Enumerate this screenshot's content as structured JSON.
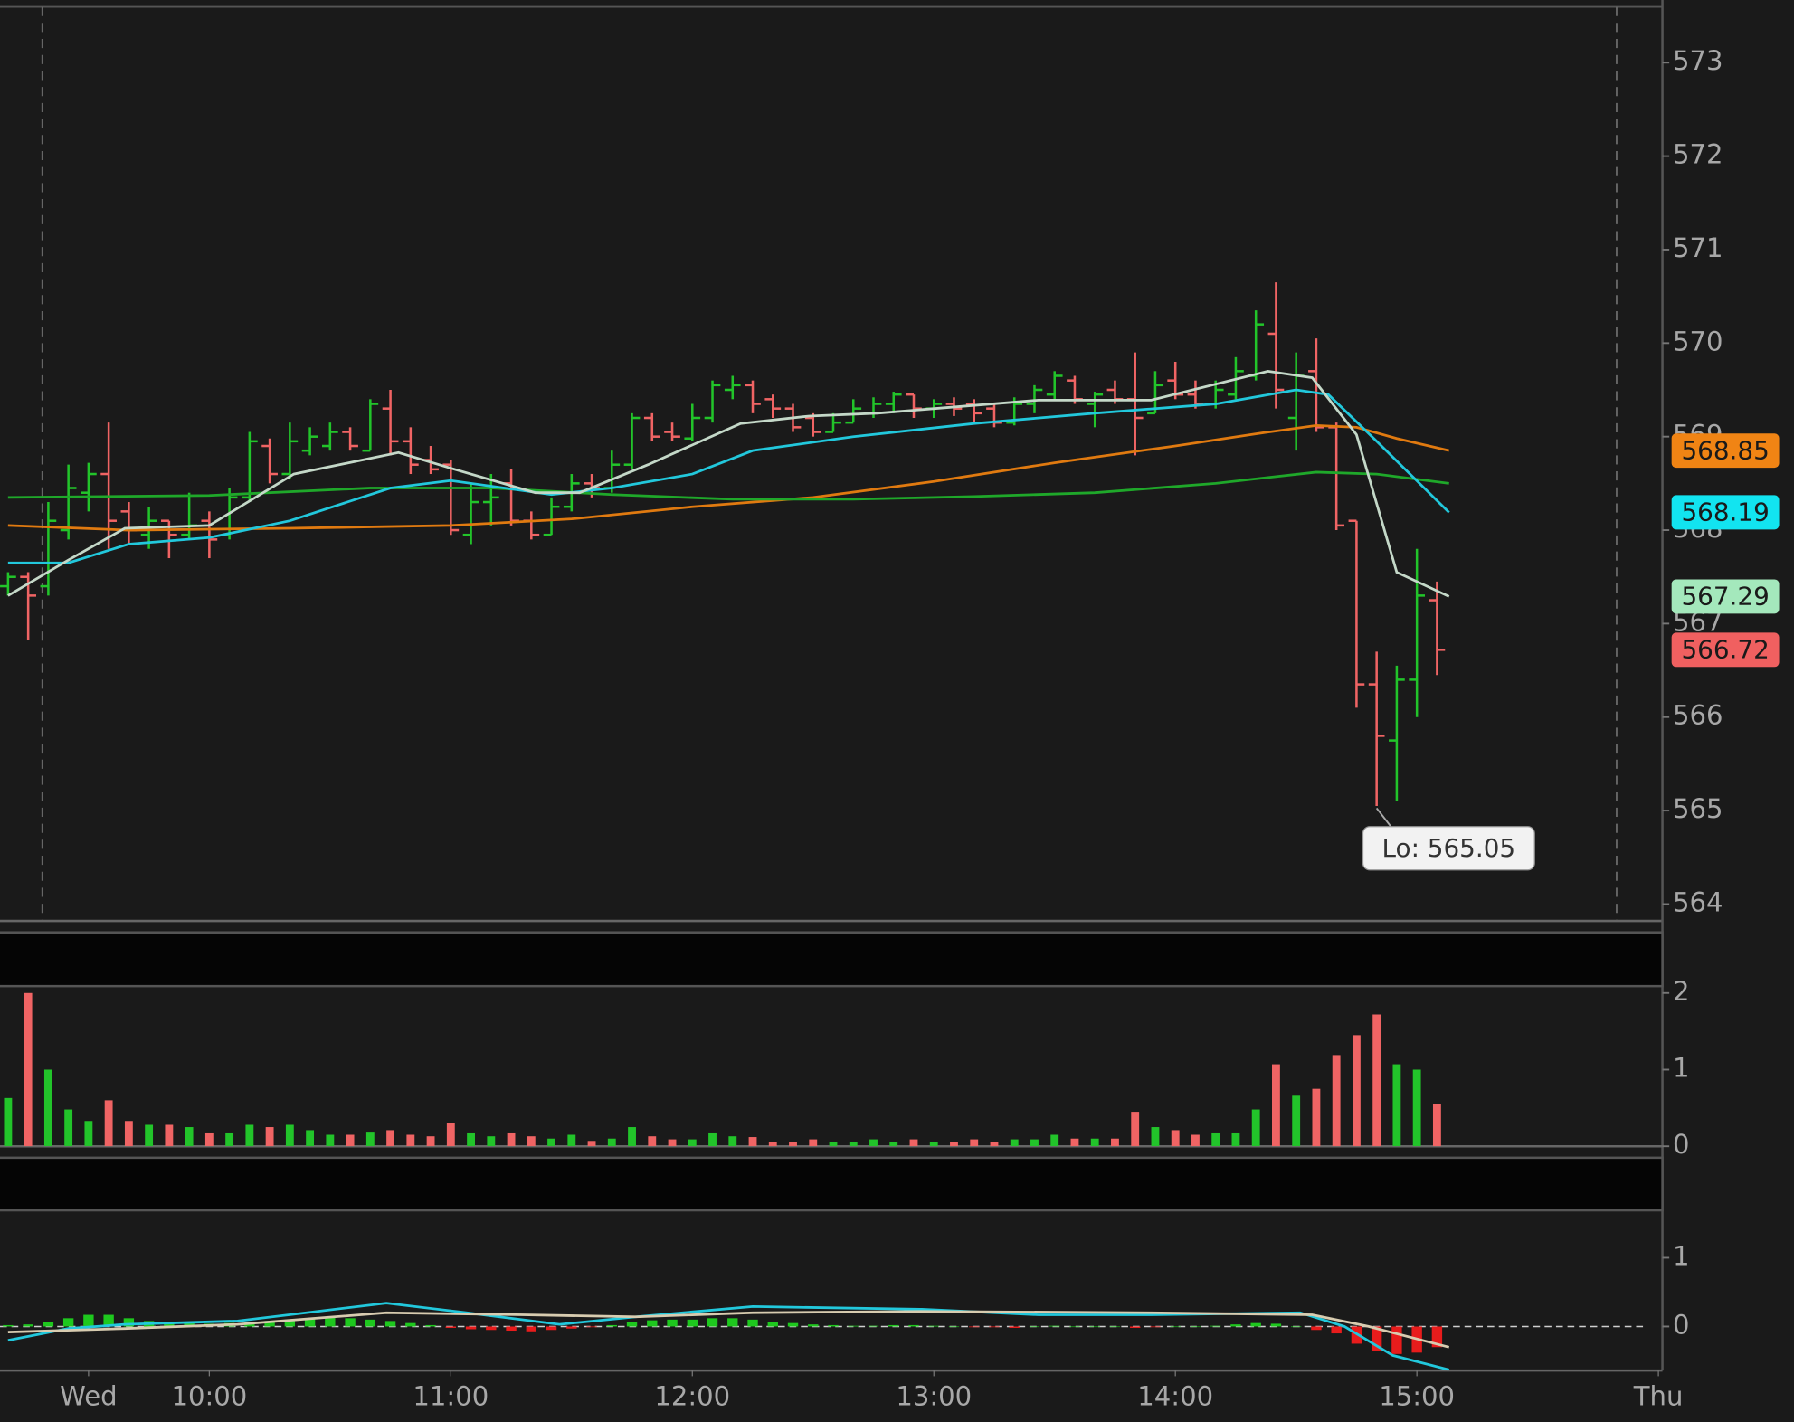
{
  "chart_data": [
    {
      "type": "ohlc",
      "x": [
        550,
        555,
        560,
        565,
        570,
        575,
        580,
        585,
        590,
        595,
        600,
        605,
        610,
        615,
        620,
        625,
        630,
        635,
        640,
        645,
        650,
        655,
        660,
        665,
        670,
        675,
        680,
        685,
        690,
        695,
        700,
        705,
        710,
        715,
        720,
        725,
        730,
        735,
        740,
        745,
        750,
        755,
        760,
        765,
        770,
        775,
        780,
        785,
        790,
        795,
        800,
        805,
        810,
        815,
        820,
        825,
        830,
        835,
        840,
        845,
        850,
        855,
        860,
        865,
        870,
        875,
        880,
        885,
        890,
        895,
        900,
        905
      ],
      "open": [
        567.4,
        567.5,
        567.4,
        568.0,
        568.4,
        568.6,
        568.2,
        567.95,
        568.1,
        567.95,
        568.1,
        567.95,
        568.35,
        568.9,
        568.6,
        568.85,
        568.9,
        569.05,
        568.85,
        569.3,
        568.95,
        568.75,
        568.7,
        567.95,
        568.3,
        568.5,
        568.1,
        567.95,
        568.25,
        568.5,
        568.45,
        568.7,
        569.2,
        569.05,
        568.98,
        569.2,
        569.5,
        569.55,
        569.4,
        569.3,
        569.2,
        569.05,
        569.15,
        569.25,
        569.35,
        569.45,
        569.3,
        569.35,
        569.35,
        569.3,
        569.15,
        569.35,
        569.45,
        569.6,
        569.35,
        569.5,
        569.4,
        569.25,
        569.6,
        569.45,
        569.35,
        569.45,
        569.65,
        570.1,
        569.2,
        569.7,
        569.1,
        568.1,
        566.35,
        565.75,
        566.4,
        567.25
      ],
      "high": [
        567.55,
        567.55,
        568.3,
        568.7,
        568.72,
        569.15,
        568.3,
        568.25,
        568.1,
        568.4,
        568.2,
        568.45,
        569.05,
        568.98,
        569.15,
        569.1,
        569.15,
        569.1,
        569.4,
        569.5,
        569.1,
        568.9,
        568.75,
        568.5,
        568.6,
        568.65,
        568.2,
        568.35,
        568.6,
        568.6,
        568.85,
        569.25,
        569.25,
        569.15,
        569.35,
        569.6,
        569.65,
        569.6,
        569.45,
        569.35,
        569.25,
        569.25,
        569.4,
        569.42,
        569.48,
        569.45,
        569.4,
        569.42,
        569.4,
        569.35,
        569.42,
        569.55,
        569.7,
        569.65,
        569.48,
        569.6,
        569.9,
        569.7,
        569.8,
        569.6,
        569.6,
        569.85,
        570.35,
        570.65,
        569.9,
        570.05,
        569.15,
        568.1,
        566.7,
        566.55,
        567.8,
        567.45
      ],
      "low": [
        567.3,
        566.82,
        567.3,
        567.9,
        568.2,
        567.8,
        567.85,
        567.8,
        567.7,
        567.9,
        567.7,
        567.9,
        568.3,
        568.5,
        568.55,
        568.8,
        568.85,
        568.85,
        568.85,
        568.8,
        568.6,
        568.6,
        567.95,
        567.85,
        568.05,
        568.05,
        567.9,
        567.95,
        568.2,
        568.35,
        568.4,
        568.65,
        568.95,
        568.95,
        568.95,
        569.15,
        569.4,
        569.25,
        569.2,
        569.05,
        569.0,
        569.05,
        569.15,
        569.2,
        569.25,
        569.2,
        569.2,
        569.22,
        569.15,
        569.1,
        569.12,
        569.25,
        569.4,
        569.35,
        569.1,
        569.35,
        568.8,
        569.25,
        569.4,
        569.3,
        569.3,
        569.4,
        569.6,
        569.3,
        568.85,
        569.05,
        568.0,
        566.1,
        565.05,
        565.1,
        566.0,
        566.45
      ],
      "close": [
        567.5,
        567.3,
        568.1,
        568.45,
        568.6,
        568.1,
        568.0,
        568.1,
        567.95,
        568.05,
        567.9,
        568.35,
        568.95,
        568.6,
        568.95,
        569.0,
        569.05,
        568.9,
        569.35,
        568.95,
        568.7,
        568.65,
        568.0,
        568.3,
        568.35,
        568.1,
        567.95,
        568.25,
        568.5,
        568.45,
        568.7,
        569.2,
        569.0,
        569.0,
        569.2,
        569.55,
        569.55,
        569.35,
        569.3,
        569.1,
        569.05,
        569.15,
        569.3,
        569.35,
        569.45,
        569.3,
        569.35,
        569.3,
        569.25,
        569.15,
        569.35,
        569.5,
        569.65,
        569.4,
        569.45,
        569.4,
        569.2,
        569.55,
        569.45,
        569.35,
        569.5,
        569.7,
        570.2,
        569.5,
        569.65,
        569.1,
        568.05,
        566.35,
        565.8,
        566.4,
        567.3,
        566.72
      ],
      "up_color": "#22c42a",
      "down_color": "#f06464",
      "lines": [
        {
          "color": "#e07a10",
          "x": [
            550,
            580,
            620,
            660,
            690,
            720,
            750,
            780,
            810,
            840,
            860,
            875,
            885,
            895,
            908
          ],
          "values": [
            568.05,
            568.0,
            568.02,
            568.05,
            568.12,
            568.25,
            568.35,
            568.52,
            568.72,
            568.9,
            569.03,
            569.12,
            569.1,
            568.98,
            568.85
          ]
        },
        {
          "color": "#1fa82a",
          "x": [
            550,
            600,
            640,
            670,
            700,
            730,
            760,
            790,
            820,
            850,
            875,
            890,
            908
          ],
          "values": [
            568.35,
            568.37,
            568.45,
            568.45,
            568.38,
            568.33,
            568.33,
            568.36,
            568.4,
            568.5,
            568.62,
            568.6,
            568.5
          ]
        },
        {
          "color": "#22c8dc",
          "x": [
            550,
            565,
            580,
            600,
            620,
            645,
            660,
            685,
            700,
            720,
            735,
            760,
            790,
            820,
            850,
            870,
            878,
            890,
            908
          ],
          "values": [
            567.65,
            567.65,
            567.85,
            567.92,
            568.1,
            568.45,
            568.53,
            568.38,
            568.45,
            568.6,
            568.85,
            569.0,
            569.14,
            569.25,
            569.35,
            569.5,
            569.45,
            568.95,
            568.19
          ]
        },
        {
          "color": "#c4d8c8",
          "x": [
            550,
            565,
            579,
            600,
            621,
            647,
            661,
            681,
            692,
            709,
            732,
            749,
            766,
            806,
            834,
            863,
            874,
            885,
            895,
            908
          ],
          "values": [
            567.3,
            567.68,
            568.02,
            568.05,
            568.6,
            568.83,
            568.65,
            568.4,
            568.4,
            568.7,
            569.14,
            569.22,
            569.25,
            569.39,
            569.39,
            569.7,
            569.63,
            569.02,
            567.55,
            567.29
          ]
        }
      ],
      "price_markers": [
        {
          "value": 568.85,
          "color": "#f08414"
        },
        {
          "value": 568.19,
          "color": "#12e4f0"
        },
        {
          "value": 567.29,
          "color": "#a4e8bc"
        },
        {
          "value": 566.72,
          "color": "#f06060"
        }
      ],
      "low_label": "Lo: 565.05",
      "xlim": [
        548,
        961
      ],
      "ylim": [
        563.82,
        573.67
      ],
      "yticks": [
        564,
        565,
        566,
        567,
        568,
        569,
        570,
        571,
        572,
        573
      ]
    },
    {
      "type": "volume",
      "x": [
        550,
        555,
        560,
        565,
        570,
        575,
        580,
        585,
        590,
        595,
        600,
        605,
        610,
        615,
        620,
        625,
        630,
        635,
        640,
        645,
        650,
        655,
        660,
        665,
        670,
        675,
        680,
        685,
        690,
        695,
        700,
        705,
        710,
        715,
        720,
        725,
        730,
        735,
        740,
        745,
        750,
        755,
        760,
        765,
        770,
        775,
        780,
        785,
        790,
        795,
        800,
        805,
        810,
        815,
        820,
        825,
        830,
        835,
        840,
        845,
        850,
        855,
        860,
        865,
        870,
        875,
        880,
        885,
        890,
        895,
        900,
        905
      ],
      "values": [
        0.63,
        2.0,
        1.0,
        0.48,
        0.33,
        0.6,
        0.33,
        0.28,
        0.28,
        0.25,
        0.18,
        0.18,
        0.28,
        0.25,
        0.28,
        0.21,
        0.15,
        0.15,
        0.19,
        0.21,
        0.15,
        0.13,
        0.3,
        0.18,
        0.13,
        0.18,
        0.13,
        0.1,
        0.15,
        0.07,
        0.1,
        0.25,
        0.13,
        0.09,
        0.09,
        0.18,
        0.13,
        0.12,
        0.06,
        0.06,
        0.09,
        0.06,
        0.06,
        0.09,
        0.06,
        0.09,
        0.06,
        0.06,
        0.09,
        0.06,
        0.09,
        0.09,
        0.15,
        0.1,
        0.1,
        0.1,
        0.45,
        0.25,
        0.21,
        0.15,
        0.18,
        0.18,
        0.48,
        1.07,
        0.66,
        0.75,
        1.19,
        1.45,
        1.72,
        1.07,
        1.0,
        0.55
      ],
      "up_color": "#22c42a",
      "down_color": "#f06464",
      "xlim": [
        548,
        961
      ],
      "ylim": [
        0,
        2.09
      ],
      "yticks": [
        0,
        1,
        2
      ]
    },
    {
      "type": "macd",
      "x": [
        550,
        555,
        560,
        565,
        570,
        575,
        580,
        585,
        590,
        595,
        600,
        605,
        610,
        615,
        620,
        625,
        630,
        635,
        640,
        645,
        650,
        655,
        660,
        665,
        670,
        675,
        680,
        685,
        690,
        695,
        700,
        705,
        710,
        715,
        720,
        725,
        730,
        735,
        740,
        745,
        750,
        755,
        760,
        765,
        770,
        775,
        780,
        785,
        790,
        795,
        800,
        805,
        810,
        815,
        820,
        825,
        830,
        835,
        840,
        845,
        850,
        855,
        860,
        865,
        870,
        875,
        880,
        885,
        890,
        895,
        900,
        905
      ],
      "histogram": [
        0.02,
        0.03,
        0.06,
        0.12,
        0.17,
        0.17,
        0.12,
        0.08,
        0.06,
        0.05,
        0.04,
        0.05,
        0.07,
        0.08,
        0.1,
        0.12,
        0.13,
        0.12,
        0.1,
        0.08,
        0.05,
        0.02,
        -0.02,
        -0.04,
        -0.05,
        -0.06,
        -0.07,
        -0.05,
        -0.03,
        -0.01,
        0.02,
        0.06,
        0.09,
        0.1,
        0.1,
        0.12,
        0.12,
        0.1,
        0.07,
        0.05,
        0.03,
        0.02,
        0.01,
        0.01,
        0.02,
        0.02,
        0.01,
        0.0,
        -0.01,
        -0.01,
        -0.02,
        0.0,
        0.01,
        0.0,
        0.0,
        0.0,
        -0.02,
        -0.01,
        0.0,
        0.0,
        0.01,
        0.03,
        0.05,
        0.04,
        0.0,
        -0.05,
        -0.1,
        -0.25,
        -0.35,
        -0.4,
        -0.38,
        -0.3
      ],
      "up_color": "#1ec81e",
      "down_color": "#e81c1c",
      "lines": [
        {
          "color": "#22c8dc",
          "x": [
            550,
            565,
            579,
            607,
            644,
            664,
            687,
            706,
            735,
            777,
            806,
            834,
            871,
            882,
            894,
            908
          ],
          "values": [
            -0.2,
            -0.03,
            0.03,
            0.08,
            0.34,
            0.2,
            0.03,
            0.14,
            0.29,
            0.25,
            0.17,
            0.17,
            0.2,
            0.0,
            -0.42,
            -0.63
          ]
        },
        {
          "color": "#d8ccb0",
          "x": [
            550,
            579,
            607,
            644,
            678,
            706,
            735,
            777,
            834,
            874,
            888,
            908
          ],
          "values": [
            -0.08,
            -0.03,
            0.03,
            0.2,
            0.17,
            0.14,
            0.2,
            0.22,
            0.2,
            0.17,
            0.0,
            -0.3
          ]
        }
      ],
      "xlim": [
        548,
        961
      ],
      "ylim": [
        -0.64,
        1.69
      ],
      "yticks": [
        0,
        1
      ],
      "xticks": [
        {
          "value": 570,
          "label": "Wed"
        },
        {
          "value": 600,
          "label": "10:00"
        },
        {
          "value": 660,
          "label": "11:00"
        },
        {
          "value": 720,
          "label": "12:00"
        },
        {
          "value": 780,
          "label": "13:00"
        },
        {
          "value": 840,
          "label": "14:00"
        },
        {
          "value": 900,
          "label": "15:00"
        },
        {
          "value": 960,
          "label": "Thu"
        }
      ]
    }
  ]
}
